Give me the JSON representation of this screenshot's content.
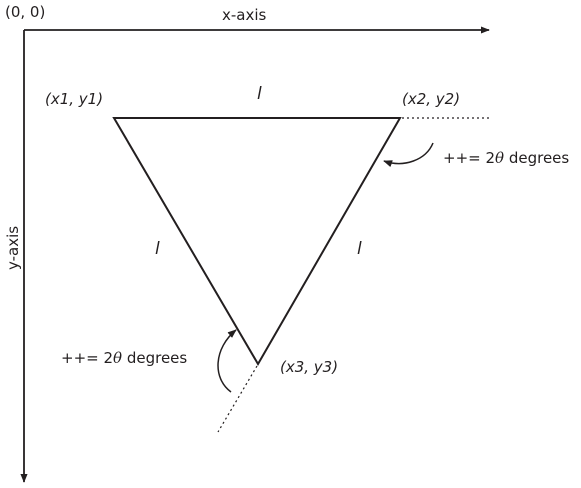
{
  "origin_label": "(0, 0)",
  "x_axis_label": "x-axis",
  "y_axis_label": "y-axis",
  "vertex1_label": "(x1, y1)",
  "vertex2_label": "(x2, y2)",
  "vertex3_label": "(x3, y3)",
  "side_label": "l",
  "angle_prefix": "++= 2",
  "theta_symbol": "θ",
  "angle_suffix": " degrees",
  "colors": {
    "ink": "#231f20",
    "background": "#ffffff"
  }
}
